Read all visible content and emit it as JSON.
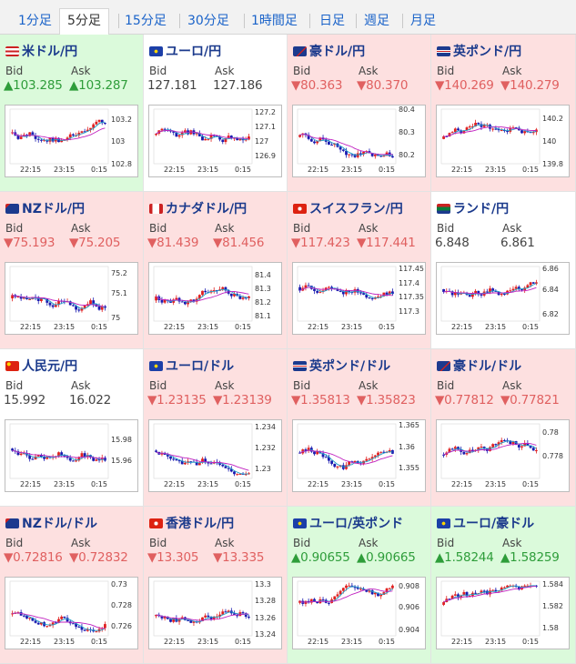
{
  "tabs": [
    {
      "label": "1分足",
      "active": false
    },
    {
      "label": "5分足",
      "active": true
    },
    {
      "label": "15分足",
      "active": false
    },
    {
      "label": "30分足",
      "active": false
    },
    {
      "label": "1時間足",
      "active": false
    },
    {
      "label": "日足",
      "active": false
    },
    {
      "label": "週足",
      "active": false
    },
    {
      "label": "月足",
      "active": false
    }
  ],
  "labels": {
    "bid": "Bid",
    "ask": "Ask"
  },
  "colors": {
    "up_bg": "#dbfadb",
    "down_bg": "#fde0e0",
    "up_text": "#2e9d3a",
    "down_text": "#e06060",
    "title": "#1b3a8c",
    "candle_up": "#e02020",
    "candle_down": "#1a1ab0",
    "ma1": "#20a0c8",
    "ma2": "#c020c0"
  },
  "pairs": [
    {
      "name": "米ドル/円",
      "flag": "us-flag",
      "dir": "up",
      "bid": "▲103.285",
      "ask": "▲103.287",
      "chart": {
        "y_ticks": [
          "103.2",
          "103",
          "102.8"
        ],
        "x_ticks": [
          "22:15",
          "23:15",
          "0:15"
        ]
      }
    },
    {
      "name": "ユーロ/円",
      "flag": "eu-flag",
      "dir": "flat",
      "bid": "127.181",
      "ask": "127.186",
      "chart": {
        "y_ticks": [
          "127.2",
          "127.1",
          "127",
          "126.9"
        ],
        "x_ticks": [
          "22:15",
          "23:15",
          "0:15"
        ]
      }
    },
    {
      "name": "豪ドル/円",
      "flag": "au-flag",
      "dir": "down",
      "bid": "▼80.363",
      "ask": "▼80.370",
      "chart": {
        "y_ticks": [
          "80.4",
          "80.3",
          "80.2"
        ],
        "x_ticks": [
          "22:15",
          "23:15",
          "0:15"
        ]
      }
    },
    {
      "name": "英ポンド/円",
      "flag": "gb-flag",
      "dir": "down",
      "bid": "▼140.269",
      "ask": "▼140.279",
      "chart": {
        "y_ticks": [
          "140.2",
          "140",
          "139.8"
        ],
        "x_ticks": [
          "22:15",
          "23:15",
          "0:15"
        ]
      }
    },
    {
      "name": "NZドル/円",
      "flag": "nz-flag",
      "dir": "down",
      "bid": "▼75.193",
      "ask": "▼75.205",
      "chart": {
        "y_ticks": [
          "75.2",
          "75.1",
          "75"
        ],
        "x_ticks": [
          "22:15",
          "23:15",
          "0:15"
        ]
      }
    },
    {
      "name": "カナダドル/円",
      "flag": "ca-flag",
      "dir": "down",
      "bid": "▼81.439",
      "ask": "▼81.456",
      "chart": {
        "y_ticks": [
          "81.4",
          "81.3",
          "81.2",
          "81.1"
        ],
        "x_ticks": [
          "22:15",
          "23:15",
          "0:15"
        ]
      }
    },
    {
      "name": "スイスフラン/円",
      "flag": "ch-flag",
      "dir": "down",
      "bid": "▼117.423",
      "ask": "▼117.441",
      "chart": {
        "y_ticks": [
          "117.45",
          "117.4",
          "117.35",
          "117.3"
        ],
        "x_ticks": [
          "22:15",
          "23:15",
          "0:15"
        ]
      }
    },
    {
      "name": "ランド/円",
      "flag": "za-flag",
      "dir": "flat",
      "bid": "6.848",
      "ask": "6.861",
      "chart": {
        "y_ticks": [
          "6.86",
          "6.84",
          "6.82"
        ],
        "x_ticks": [
          "22:15",
          "23:15",
          "0:15"
        ]
      }
    },
    {
      "name": "人民元/円",
      "flag": "cn-flag",
      "dir": "flat",
      "bid": "15.992",
      "ask": "16.022",
      "chart": {
        "y_ticks": [
          "15.98",
          "15.96"
        ],
        "x_ticks": [
          "22:15",
          "23:15",
          "0:15"
        ]
      }
    },
    {
      "name": "ユーロ/ドル",
      "flag": "eu-flag",
      "dir": "down",
      "bid": "▼1.23135",
      "ask": "▼1.23139",
      "chart": {
        "y_ticks": [
          "1.234",
          "1.232",
          "1.23"
        ],
        "x_ticks": [
          "22:15",
          "23:15",
          "0:15"
        ]
      }
    },
    {
      "name": "英ポンド/ドル",
      "flag": "gb-flag",
      "dir": "down",
      "bid": "▼1.35813",
      "ask": "▼1.35823",
      "chart": {
        "y_ticks": [
          "1.365",
          "1.36",
          "1.355"
        ],
        "x_ticks": [
          "22:15",
          "23:15",
          "0:15"
        ]
      }
    },
    {
      "name": "豪ドル/ドル",
      "flag": "au-flag",
      "dir": "down",
      "bid": "▼0.77812",
      "ask": "▼0.77821",
      "chart": {
        "y_ticks": [
          "0.78",
          "0.778"
        ],
        "x_ticks": [
          "22:15",
          "23:15",
          "0:15"
        ]
      }
    },
    {
      "name": "NZドル/ドル",
      "flag": "nz-flag",
      "dir": "down",
      "bid": "▼0.72816",
      "ask": "▼0.72832",
      "chart": {
        "y_ticks": [
          "0.73",
          "0.728",
          "0.726"
        ],
        "x_ticks": [
          "22:15",
          "23:15",
          "0:15"
        ]
      }
    },
    {
      "name": "香港ドル/円",
      "flag": "hk-flag",
      "dir": "down",
      "bid": "▼13.305",
      "ask": "▼13.335",
      "chart": {
        "y_ticks": [
          "13.3",
          "13.28",
          "13.26",
          "13.24"
        ],
        "x_ticks": [
          "22:15",
          "23:15",
          "0:15"
        ]
      }
    },
    {
      "name": "ユーロ/英ポンド",
      "flag": "eu-flag",
      "dir": "up",
      "bid": "▲0.90655",
      "ask": "▲0.90665",
      "chart": {
        "y_ticks": [
          "0.908",
          "0.906",
          "0.904"
        ],
        "x_ticks": [
          "22:15",
          "23:15",
          "0:15"
        ]
      }
    },
    {
      "name": "ユーロ/豪ドル",
      "flag": "eu-flag",
      "dir": "up",
      "bid": "▲1.58244",
      "ask": "▲1.58259",
      "chart": {
        "y_ticks": [
          "1.584",
          "1.582",
          "1.58"
        ],
        "x_ticks": [
          "22:15",
          "23:15",
          "0:15"
        ]
      }
    }
  ]
}
